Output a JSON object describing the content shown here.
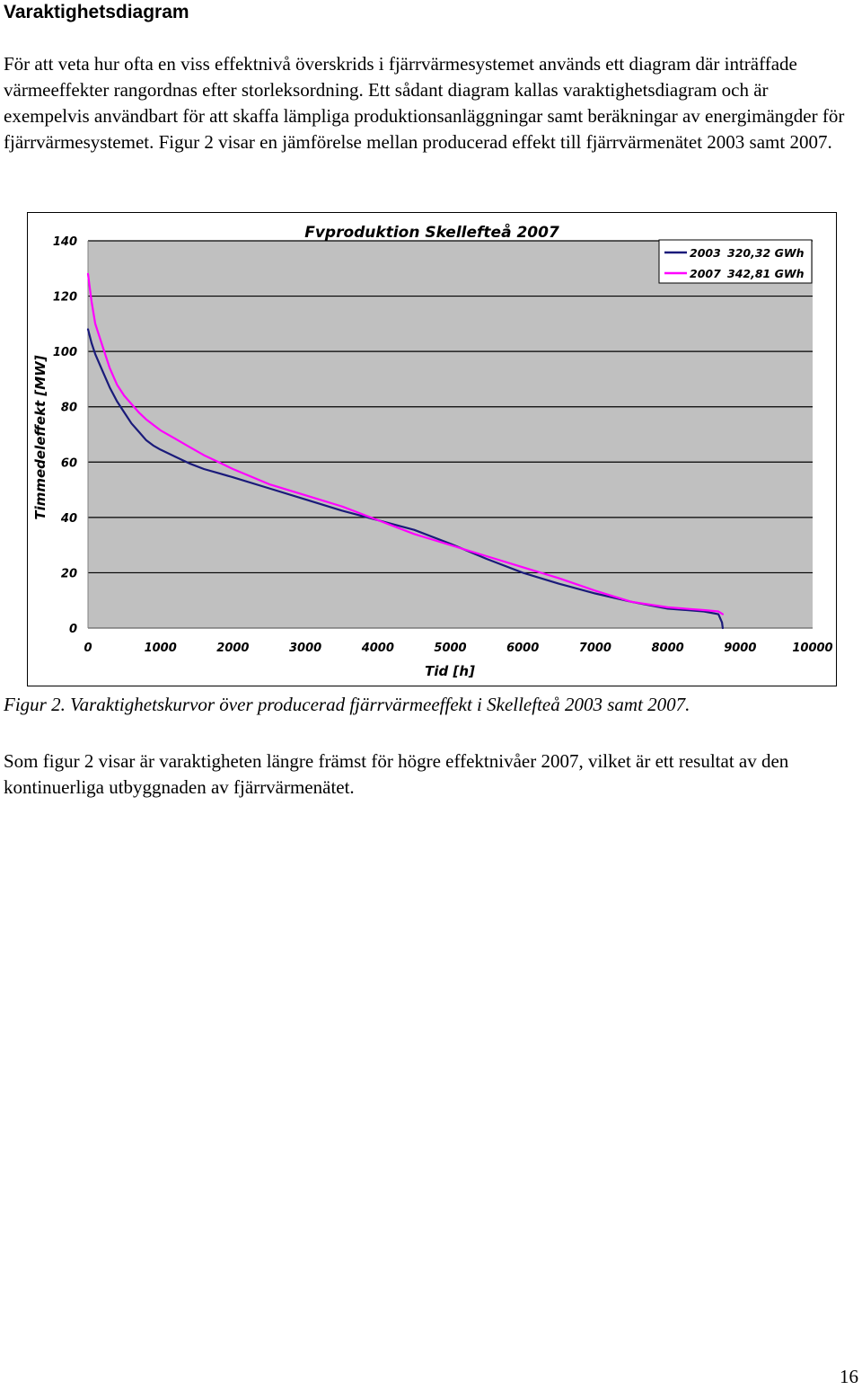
{
  "heading": "Varaktighetsdiagram",
  "paragraph1": "För att veta hur ofta en viss effektnivå överskrids i fjärrvärmesystemet används ett diagram där inträffade värmeeffekter rangordnas efter storleksordning. Ett sådant diagram kallas varaktighetsdiagram och är exempelvis användbart för att skaffa lämpliga produktionsanläggningar samt beräkningar av energimängder för fjärrvärmesystemet. Figur 2 visar en jämförelse mellan producerad effekt till fjärrvärmenätet 2003 samt 2007.",
  "caption": "Figur 2. Varaktighetskurvor över producerad fjärrvärmeeffekt i Skellefteå 2003 samt 2007.",
  "paragraph2": "Som figur 2 visar är varaktigheten längre främst för högre effektnivåer 2007, vilket är ett resultat av den kontinuerliga utbyggnaden av fjärrvärmenätet.",
  "page_number": "16",
  "chart_data": {
    "type": "line",
    "title": "Fvproduktion Skellefteå 2007",
    "xlabel": "Tid [h]",
    "ylabel": "Timmedeleffekt [MW]",
    "xlim": [
      0,
      10000
    ],
    "ylim": [
      0,
      140
    ],
    "xticks": [
      0,
      1000,
      2000,
      3000,
      4000,
      5000,
      6000,
      7000,
      8000,
      9000,
      10000
    ],
    "yticks": [
      0,
      20,
      40,
      60,
      80,
      100,
      120,
      140
    ],
    "grid": "horizontal",
    "legend_position": "top-right",
    "plot_background": "#c0c0c0",
    "series": [
      {
        "name": "2003",
        "legend_value": "320,32 GWh",
        "color": "#1a1a7a",
        "x": [
          0,
          50,
          100,
          200,
          300,
          400,
          500,
          600,
          700,
          800,
          900,
          1000,
          1200,
          1400,
          1600,
          1800,
          2000,
          2500,
          3000,
          3500,
          4000,
          4500,
          5000,
          5500,
          6000,
          6500,
          7000,
          7500,
          8000,
          8500,
          8700,
          8750,
          8760
        ],
        "y": [
          108,
          103,
          99,
          93,
          87,
          82,
          78,
          74,
          71,
          68,
          66,
          64.5,
          62,
          59.5,
          57.5,
          56,
          54.5,
          50.5,
          46.5,
          42.5,
          39,
          35.5,
          30.5,
          25,
          20,
          16,
          12.5,
          9.5,
          7,
          6,
          5,
          2,
          0
        ]
      },
      {
        "name": "2007",
        "legend_value": "342,81 GWh",
        "color": "#ff00ff",
        "x": [
          0,
          20,
          50,
          100,
          200,
          300,
          400,
          500,
          600,
          700,
          800,
          900,
          1000,
          1200,
          1400,
          1600,
          1800,
          2000,
          2500,
          3000,
          3500,
          4000,
          4500,
          5000,
          5500,
          6000,
          6500,
          7000,
          7500,
          8000,
          8500,
          8700,
          8760
        ],
        "y": [
          128,
          124,
          118,
          110,
          102,
          94,
          88,
          84,
          81,
          78,
          75.5,
          73.5,
          71.5,
          68.5,
          65.5,
          62.5,
          60,
          57.5,
          52,
          48,
          44,
          39,
          34,
          30,
          26,
          22,
          18,
          13.5,
          9.5,
          7.5,
          6.5,
          6,
          5
        ]
      }
    ]
  }
}
